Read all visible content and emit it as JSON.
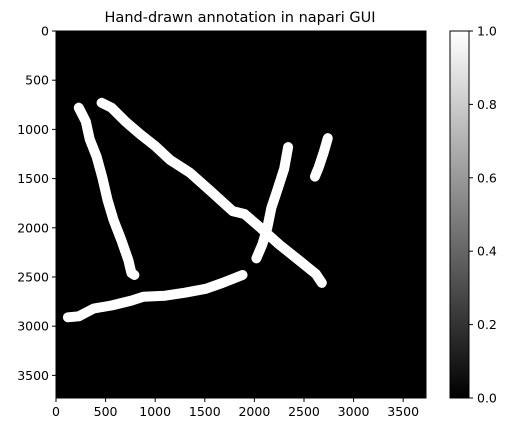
{
  "chart_data": {
    "type": "heatmap",
    "title": "Hand-drawn annotation in napari GUI",
    "xlabel": "",
    "ylabel": "",
    "xlim": [
      0,
      3730
    ],
    "ylim": [
      3730,
      0
    ],
    "x_ticks": [
      0,
      500,
      1000,
      1500,
      2000,
      2500,
      3000,
      3500
    ],
    "y_ticks": [
      0,
      500,
      1000,
      1500,
      2000,
      2500,
      3000,
      3500
    ],
    "background_value": 0.0,
    "stroke_value": 1.0,
    "colormap": "gray",
    "colorbar": {
      "ticks": [
        0.0,
        0.2,
        0.4,
        0.6,
        0.8,
        1.0
      ],
      "tick_labels": [
        "0.0",
        "0.2",
        "0.4",
        "0.6",
        "0.8",
        "1.0"
      ],
      "range": [
        0.0,
        1.0
      ]
    },
    "grid": false,
    "annotation_strokes": [
      {
        "id": "left-vertical-stroke",
        "points": [
          [
            230,
            780
          ],
          [
            300,
            920
          ],
          [
            340,
            1100
          ],
          [
            410,
            1280
          ],
          [
            470,
            1500
          ],
          [
            520,
            1720
          ],
          [
            580,
            1920
          ],
          [
            660,
            2130
          ],
          [
            730,
            2330
          ],
          [
            760,
            2460
          ],
          [
            790,
            2480
          ]
        ]
      },
      {
        "id": "diagonal-stroke",
        "points": [
          [
            460,
            730
          ],
          [
            560,
            780
          ],
          [
            700,
            920
          ],
          [
            850,
            1050
          ],
          [
            1000,
            1170
          ],
          [
            1150,
            1310
          ],
          [
            1350,
            1440
          ],
          [
            1550,
            1620
          ],
          [
            1780,
            1830
          ],
          [
            1900,
            1860
          ],
          [
            2050,
            1990
          ],
          [
            2250,
            2170
          ],
          [
            2450,
            2330
          ],
          [
            2620,
            2470
          ],
          [
            2680,
            2560
          ]
        ]
      },
      {
        "id": "bottom-stroke",
        "points": [
          [
            120,
            2910
          ],
          [
            230,
            2900
          ],
          [
            380,
            2820
          ],
          [
            560,
            2790
          ],
          [
            760,
            2740
          ],
          [
            880,
            2700
          ],
          [
            1100,
            2690
          ],
          [
            1300,
            2660
          ],
          [
            1510,
            2620
          ],
          [
            1680,
            2560
          ],
          [
            1880,
            2480
          ]
        ]
      },
      {
        "id": "right-vertical-stroke",
        "points": [
          [
            2340,
            1180
          ],
          [
            2300,
            1400
          ],
          [
            2230,
            1620
          ],
          [
            2170,
            1800
          ],
          [
            2130,
            2000
          ],
          [
            2080,
            2170
          ],
          [
            2020,
            2310
          ]
        ]
      },
      {
        "id": "short-stroke",
        "points": [
          [
            2740,
            1090
          ],
          [
            2700,
            1230
          ],
          [
            2650,
            1380
          ],
          [
            2610,
            1480
          ]
        ]
      }
    ]
  }
}
